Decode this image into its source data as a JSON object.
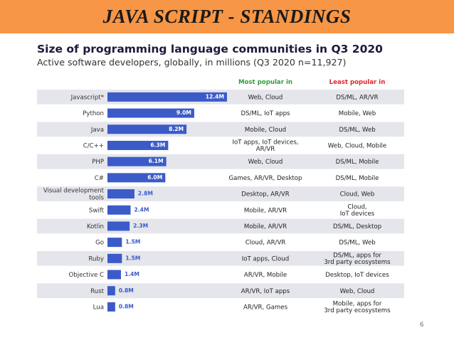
{
  "header": {
    "title": "JAVA SCRIPT - STANDINGS"
  },
  "chart_data": {
    "type": "bar",
    "orientation": "horizontal",
    "title": "Size of programming language communities in Q3 2020",
    "subtitle": "Active software developers, globally, in millions (Q3 2020 n=11,927)",
    "unit_suffix": "M",
    "xlim": [
      0,
      12.4
    ],
    "categories": [
      "Javascript*",
      "Python",
      "Java",
      "C/C++",
      "PHP",
      "C#",
      "Visual development tools",
      "Swift",
      "Kotlin",
      "Go",
      "Ruby",
      "Objective C",
      "Rust",
      "Lua"
    ],
    "category_lines": [
      [
        "Javascript*"
      ],
      [
        "Python"
      ],
      [
        "Java"
      ],
      [
        "C/C++"
      ],
      [
        "PHP"
      ],
      [
        "C#"
      ],
      [
        "Visual development",
        "tools"
      ],
      [
        "Swift"
      ],
      [
        "Kotlin"
      ],
      [
        "Go"
      ],
      [
        "Ruby"
      ],
      [
        "Objective C"
      ],
      [
        "Rust"
      ],
      [
        "Lua"
      ]
    ],
    "values": [
      12.4,
      9.0,
      8.2,
      6.3,
      6.1,
      6.0,
      2.8,
      2.4,
      2.3,
      1.5,
      1.5,
      1.4,
      0.8,
      0.8
    ],
    "columns": {
      "most_popular": "Most popular in",
      "least_popular": "Least popular in"
    },
    "most_popular": [
      [
        "Web, Cloud"
      ],
      [
        "DS/ML, IoT apps"
      ],
      [
        "Mobile, Cloud"
      ],
      [
        "IoT apps, IoT devices,",
        "AR/VR"
      ],
      [
        "Web, Cloud"
      ],
      [
        "Games, AR/VR, Desktop"
      ],
      [
        "Desktop, AR/VR"
      ],
      [
        "Mobile, AR/VR"
      ],
      [
        "Mobile, AR/VR"
      ],
      [
        "Cloud, AR/VR"
      ],
      [
        "IoT apps, Cloud"
      ],
      [
        "AR/VR, Mobile"
      ],
      [
        "AR/VR, IoT apps"
      ],
      [
        "AR/VR, Games"
      ]
    ],
    "least_popular": [
      [
        "DS/ML, AR/VR"
      ],
      [
        "Mobile, Web"
      ],
      [
        "DS/ML, Web"
      ],
      [
        "Web, Cloud, Mobile"
      ],
      [
        "DS/ML, Mobile"
      ],
      [
        "DS/ML, Mobile"
      ],
      [
        "Cloud, Web"
      ],
      [
        "Cloud,",
        "IoT devices"
      ],
      [
        "DS/ML, Desktop"
      ],
      [
        "DS/ML, Web"
      ],
      [
        "DS/ML, apps for",
        "3rd party ecosystems"
      ],
      [
        "Desktop, IoT devices"
      ],
      [
        "Web, Cloud"
      ],
      [
        "Mobile, apps for",
        "3rd party ecosystems"
      ]
    ],
    "colors": {
      "bar": "#3b5bc8",
      "band": "#e4e6ec",
      "most_header": "#2e9e3a",
      "least_header": "#e0262b"
    }
  },
  "footer": {
    "page_number": "6"
  }
}
